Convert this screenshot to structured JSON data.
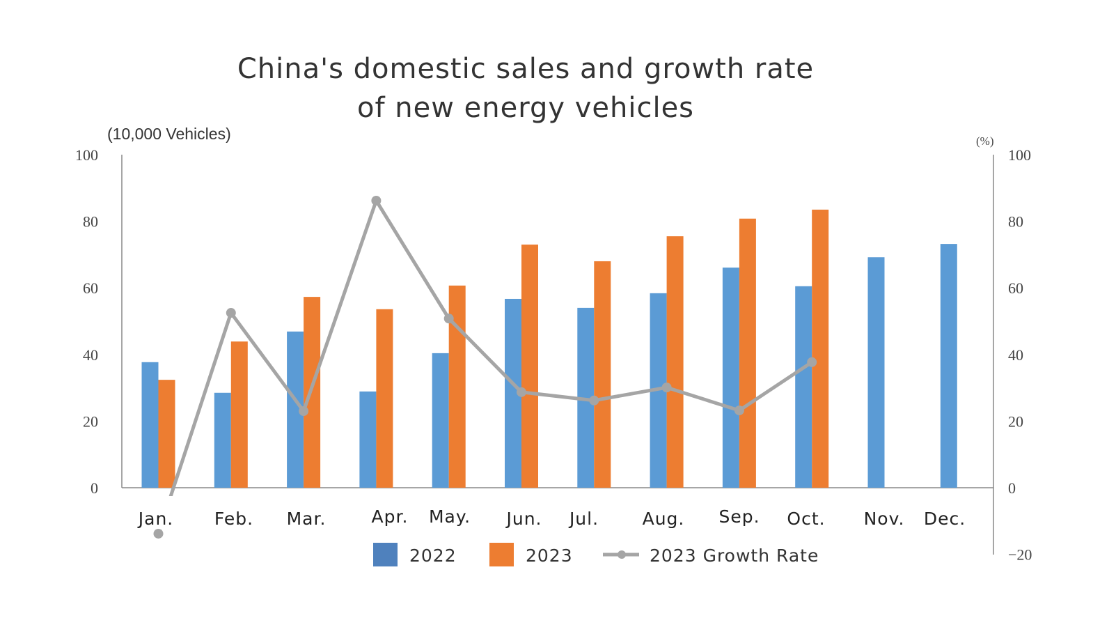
{
  "chart_data": {
    "type": "bar+line",
    "title_lines": [
      "China's domestic sales and growth rate",
      "of new energy vehicles"
    ],
    "ylabel_left": "(10,000 Vehicles)",
    "ylabel_right": "(%)",
    "ylim_left": [
      0,
      100
    ],
    "ylim_right": [
      -20,
      100
    ],
    "yticks_left": [
      "0",
      "20",
      "40",
      "60",
      "80",
      "100"
    ],
    "yticks_right": [
      "-20",
      "0",
      "20",
      "40",
      "60",
      "80",
      "100"
    ],
    "categories": [
      "Jan.",
      "Feb.",
      "Mar.",
      "Apr.",
      "May.",
      "Jun.",
      "Jul.",
      "Aug.",
      "Sep.",
      "Oct.",
      "Nov.",
      "Dec."
    ],
    "grid": false,
    "legend_position": "bottom",
    "series": [
      {
        "name": "2022",
        "type": "bar",
        "axis": "left",
        "color": "#5B9BD5",
        "values": [
          37.7,
          28.5,
          46.9,
          28.9,
          40.4,
          56.7,
          54.0,
          58.4,
          66.1,
          60.5,
          69.2,
          73.2
        ]
      },
      {
        "name": "2023",
        "type": "bar",
        "axis": "left",
        "color": "#ED7D31",
        "values": [
          32.4,
          43.9,
          57.3,
          53.6,
          60.7,
          73.0,
          68.0,
          75.5,
          80.8,
          83.5,
          null,
          null
        ]
      },
      {
        "name": "2023 Growth Rate",
        "type": "line",
        "axis": "right",
        "color": "#A5A5A5",
        "values": [
          -13.8,
          52.5,
          23.0,
          86.2,
          50.8,
          28.7,
          26.2,
          30.1,
          23.2,
          37.7,
          null,
          null
        ]
      }
    ],
    "legend_swatch_colors": {
      "2022": "#4F81BD",
      "2023": "#ED7D31",
      "2023 Growth Rate": "#A5A5A5"
    },
    "negative_tick_color": "#FF0000"
  }
}
